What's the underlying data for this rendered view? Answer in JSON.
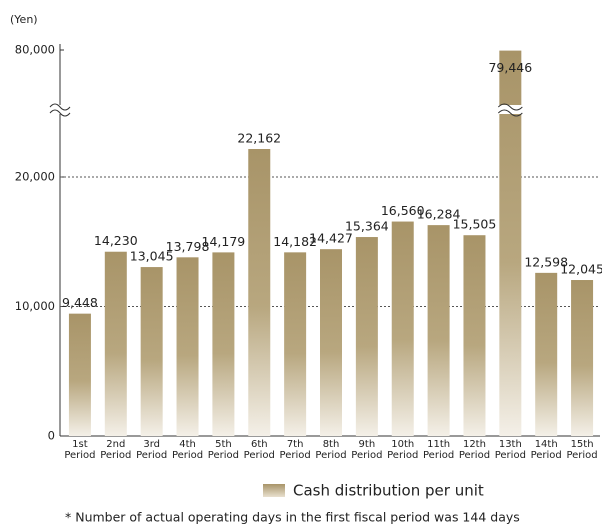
{
  "chart_data": {
    "type": "bar",
    "unit_label": "(Yen)",
    "categories": [
      "1st Period",
      "2nd Period",
      "3rd Period",
      "4th Period",
      "5th Period",
      "6th Period",
      "7th Period",
      "8th Period",
      "9th Period",
      "10th Period",
      "11th Period",
      "12th Period",
      "13th Period",
      "14th Period",
      "15th Period"
    ],
    "series": [
      {
        "name": "Cash distribution per unit",
        "color": "#a89468",
        "values": [
          9448,
          14230,
          13045,
          13798,
          14179,
          22162,
          14182,
          14427,
          15364,
          16560,
          16284,
          15505,
          79446,
          12598,
          12045
        ],
        "value_labels": [
          "9,448",
          "14,230",
          "13,045",
          "13,798",
          "14,179",
          "22,162",
          "14,182",
          "14,427",
          "15,364",
          "16,560",
          "16,284",
          "15,505",
          "79,446",
          "12,598",
          "12,045"
        ]
      }
    ],
    "ylim": [
      0,
      80000
    ],
    "yticks": [
      0,
      {
        "value": 10000,
        "label": "10,000"
      },
      {
        "value": 20000,
        "label": "20,000"
      },
      {
        "value": 80000,
        "label": "80,000"
      }
    ],
    "grid": true,
    "footnote": "* Number of actual operating days in the first fiscal period was 144 days"
  }
}
